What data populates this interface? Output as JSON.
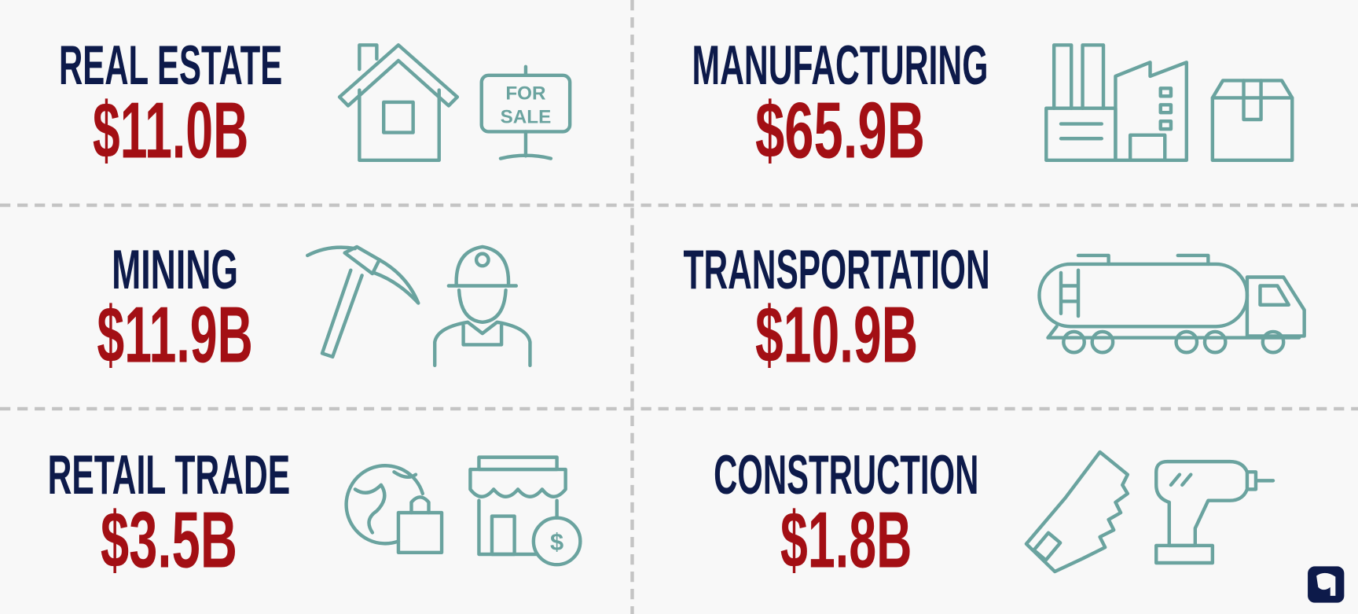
{
  "items": [
    {
      "label": "REAL ESTATE",
      "amount": "$11.0B",
      "sign": [
        "FOR",
        "SALE"
      ]
    },
    {
      "label": "MANUFACTURING",
      "amount": "$65.9B"
    },
    {
      "label": "MINING",
      "amount": "$11.9B"
    },
    {
      "label": "TRANSPORTATION",
      "amount": "$10.9B"
    },
    {
      "label": "RETAIL TRADE",
      "amount": "$3.5B"
    },
    {
      "label": "CONSTRUCTION",
      "amount": "$1.8B"
    }
  ]
}
